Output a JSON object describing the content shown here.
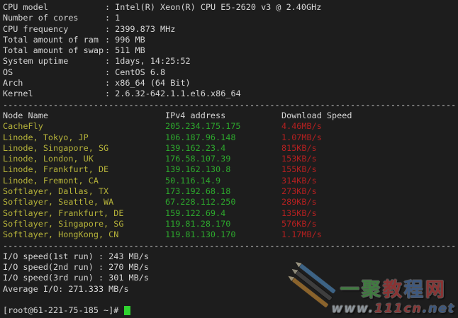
{
  "terminal": {
    "colon": ":",
    "separator": "------------------------------------------------------------------------------------------",
    "system_info": [
      {
        "label": "CPU model",
        "value": "Intel(R) Xeon(R) CPU E5-2620 v3 @ 2.40GHz"
      },
      {
        "label": "Number of cores",
        "value": "1"
      },
      {
        "label": "CPU frequency",
        "value": "2399.873 MHz"
      },
      {
        "label": "Total amount of ram",
        "value": "996 MB"
      },
      {
        "label": "Total amount of swap",
        "value": "511 MB"
      },
      {
        "label": "System uptime",
        "value": "1days, 14:25:52"
      },
      {
        "label": "OS",
        "value": "CentOS 6.8"
      },
      {
        "label": "Arch",
        "value": "x86_64 (64 Bit)"
      },
      {
        "label": "Kernel",
        "value": "2.6.32-642.1.1.el6.x86_64"
      }
    ],
    "speed_table": {
      "headers": {
        "node": "Node Name",
        "ip": "IPv4 address",
        "speed": "Download Speed"
      },
      "rows": [
        {
          "node": "CacheFly",
          "ip": "205.234.175.175",
          "speed": "4.46MB/s"
        },
        {
          "node": "Linode, Tokyo, JP",
          "ip": "106.187.96.148",
          "speed": "1.07MB/s"
        },
        {
          "node": "Linode, Singapore, SG",
          "ip": "139.162.23.4",
          "speed": "815KB/s"
        },
        {
          "node": "Linode, London, UK",
          "ip": "176.58.107.39",
          "speed": "153KB/s"
        },
        {
          "node": "Linode, Frankfurt, DE",
          "ip": "139.162.130.8",
          "speed": "155KB/s"
        },
        {
          "node": "Linode, Fremont, CA",
          "ip": "50.116.14.9",
          "speed": "314KB/s"
        },
        {
          "node": "Softlayer, Dallas, TX",
          "ip": "173.192.68.18",
          "speed": "273KB/s"
        },
        {
          "node": "Softlayer, Seattle, WA",
          "ip": "67.228.112.250",
          "speed": "289KB/s"
        },
        {
          "node": "Softlayer, Frankfurt, DE",
          "ip": "159.122.69.4",
          "speed": "135KB/s"
        },
        {
          "node": "Softlayer, Singapore, SG",
          "ip": "119.81.28.170",
          "speed": "576KB/s"
        },
        {
          "node": "Softlayer, HongKong, CN",
          "ip": "119.81.130.170",
          "speed": "1.17MB/s"
        }
      ]
    },
    "io_lines": [
      "I/O speed(1st run) : 243 MB/s",
      "I/O speed(2nd run) : 270 MB/s",
      "I/O speed(3rd run) : 301 MB/s"
    ],
    "average_line": "Average I/O: 271.333 MB/s",
    "prompt": "[root@61-221-75-185 ~]# "
  },
  "colors": {
    "background": "#1d1d1d",
    "foreground": "#d6d6d6",
    "node_yellow": "#b6b33a",
    "ip_green": "#2da82d",
    "speed_red": "#b42020",
    "cursor_green": "#2fd32f"
  },
  "watermark": {
    "title_chars": [
      {
        "char": "一",
        "color": "#4ea04e"
      },
      {
        "char": "聚",
        "color": "#4ea04e"
      },
      {
        "char": "教",
        "color": "#b43c3c"
      },
      {
        "char": "程",
        "color": "#4a6fa5"
      },
      {
        "char": "网",
        "color": "#b43c3c"
      }
    ],
    "url_parts": [
      {
        "text": "www.",
        "color": "#b8c4cc"
      },
      {
        "text": "111cn",
        "color": "#b04040"
      },
      {
        "text": ".net",
        "color": "#4a6fa5"
      }
    ]
  }
}
